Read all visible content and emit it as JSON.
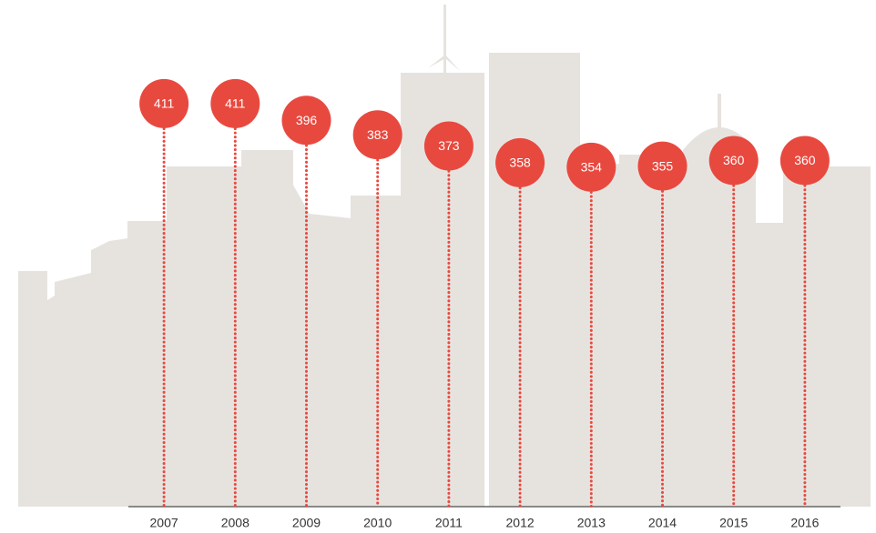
{
  "chart_data": {
    "type": "lollipop",
    "categories": [
      "2007",
      "2008",
      "2009",
      "2010",
      "2011",
      "2012",
      "2013",
      "2014",
      "2015",
      "2016"
    ],
    "values": [
      411,
      411,
      396,
      383,
      373,
      358,
      354,
      355,
      360,
      360
    ],
    "color": "#e8493f",
    "ylim": [
      50,
      450
    ]
  }
}
